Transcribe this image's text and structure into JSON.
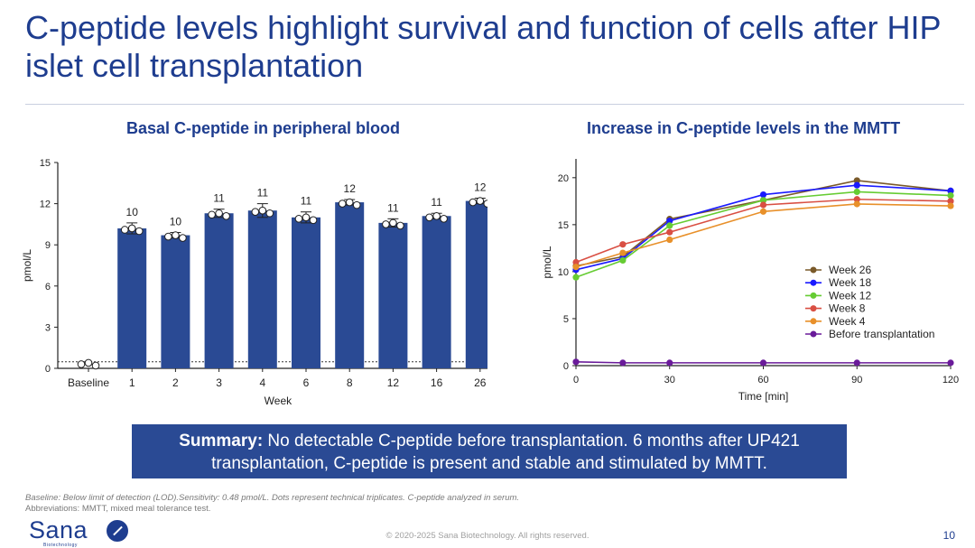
{
  "slide": {
    "title": "C-peptide levels highlight survival and function of cells after HIP islet cell transplantation",
    "summary_label": "Summary:",
    "summary_text": " No detectable C-peptide before transplantation. 6 months after UP421 transplantation, C-peptide is present and stable and stimulated by MMTT.",
    "footnote_1": "Baseline: Below limit of detection (LOD).Sensitivity: 0.48 pmol/L. Dots represent technical triplicates. C-peptide analyzed in serum.",
    "footnote_2": "Abbreviations: MMTT, mixed meal tolerance test.",
    "copyright": "© 2020-2025 Sana Biotechnology. All rights reserved.",
    "page_number": "10",
    "logo_text": "Sana",
    "logo_subtext": "Biotechnology"
  },
  "chart_data": [
    {
      "type": "bar",
      "title": "Basal C-peptide in peripheral blood",
      "xlabel": "Week",
      "ylabel": "pmol/L",
      "ylim": [
        0,
        15
      ],
      "yticks": [
        0,
        3,
        6,
        9,
        12,
        15
      ],
      "categories": [
        "Baseline",
        "1",
        "2",
        "3",
        "4",
        "6",
        "8",
        "12",
        "16",
        "26"
      ],
      "values": [
        0.4,
        10.2,
        9.7,
        11.3,
        11.5,
        11.0,
        12.1,
        10.6,
        11.1,
        12.2
      ],
      "errors": [
        0,
        0.4,
        0.2,
        0.3,
        0.5,
        0.4,
        0.2,
        0.3,
        0.2,
        0.2
      ],
      "data_labels": [
        "",
        "10",
        "10",
        "11",
        "11",
        "11",
        "12",
        "11",
        "11",
        "12"
      ],
      "reference_line": 0.48,
      "bar_color": "#2a4a94"
    },
    {
      "type": "line",
      "title": "Increase in C-peptide levels in the MMTT",
      "xlabel": "Time [min]",
      "ylabel": "pmol/L",
      "xlim": [
        0,
        120
      ],
      "ylim": [
        0,
        22
      ],
      "xticks": [
        0,
        30,
        60,
        90,
        120
      ],
      "yticks": [
        0,
        5,
        10,
        15,
        20
      ],
      "x": [
        0,
        15,
        30,
        60,
        90,
        120
      ],
      "legend_position": "right",
      "series": [
        {
          "name": "Week 26",
          "color": "#7a5a2a",
          "values": [
            10.6,
            11.6,
            15.6,
            17.6,
            19.7,
            18.6
          ]
        },
        {
          "name": "Week 18",
          "color": "#1a1aff",
          "values": [
            10.2,
            11.4,
            15.4,
            18.2,
            19.2,
            18.6
          ]
        },
        {
          "name": "Week 12",
          "color": "#66cc33",
          "values": [
            9.4,
            11.2,
            14.9,
            17.6,
            18.5,
            18.1
          ]
        },
        {
          "name": "Week 8",
          "color": "#d94f43",
          "values": [
            11.0,
            12.9,
            14.2,
            17.1,
            17.7,
            17.5
          ]
        },
        {
          "name": "Week 4",
          "color": "#e8902a",
          "values": [
            10.5,
            12.0,
            13.4,
            16.4,
            17.2,
            17.0
          ]
        },
        {
          "name": "Before transplantation",
          "color": "#6a1b9a",
          "values": [
            0.4,
            0.3,
            0.3,
            0.3,
            0.3,
            0.3
          ]
        }
      ]
    }
  ]
}
